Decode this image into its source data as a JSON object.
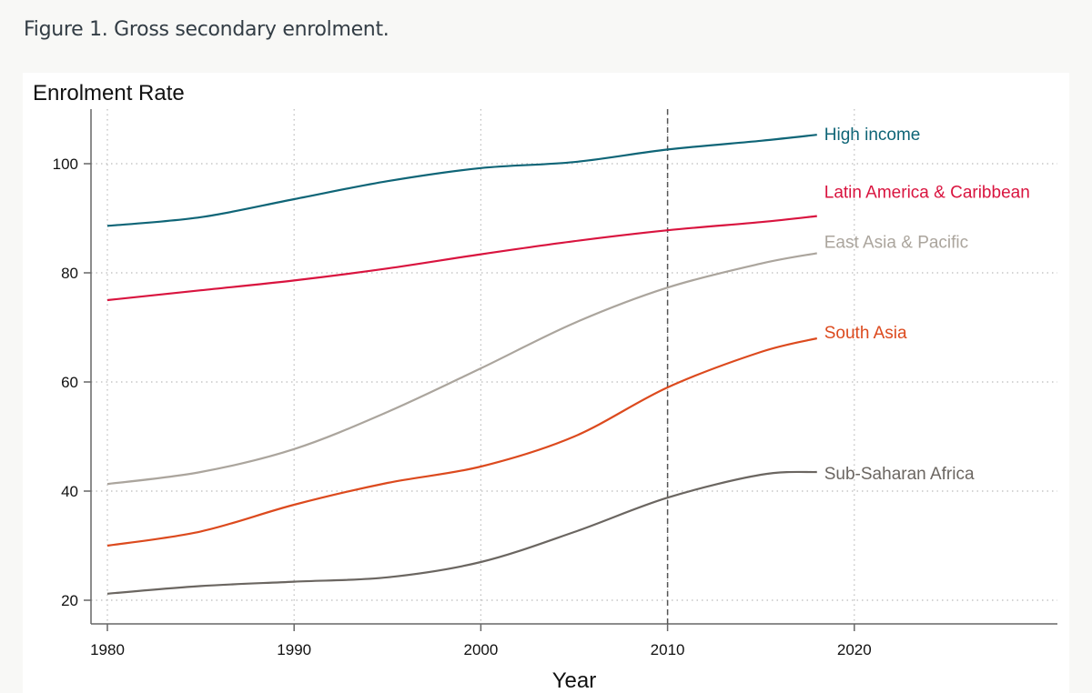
{
  "figure_title": "Figure 1. Gross secondary enrolment.",
  "chart_data": {
    "type": "line",
    "title": "",
    "ylabel": "Enrolment Rate",
    "xlabel": "Year",
    "xlim": [
      1979.2,
      2030.8
    ],
    "ylim": [
      15.8,
      110
    ],
    "xticks": [
      1980,
      1990,
      2000,
      2010,
      2020
    ],
    "yticks": [
      20,
      40,
      60,
      80,
      100
    ],
    "grid": true,
    "reference_line": {
      "x": 2010,
      "style": "dashed"
    },
    "x": [
      1980,
      1985,
      1990,
      1995,
      2000,
      2005,
      2010,
      2015,
      2018
    ],
    "series": [
      {
        "name": "High income",
        "color": "#0f6577",
        "values": [
          88.6,
          90.2,
          93.5,
          96.8,
          99.2,
          100.3,
          102.6,
          104.2,
          105.3
        ]
      },
      {
        "name": "Latin America & Caribbean",
        "color": "#d9143f",
        "values": [
          75.0,
          76.8,
          78.6,
          80.8,
          83.4,
          85.8,
          87.8,
          89.3,
          90.4
        ]
      },
      {
        "name": "East Asia & Pacific",
        "color": "#aba59d",
        "values": [
          41.3,
          43.5,
          47.7,
          54.5,
          62.5,
          70.8,
          77.3,
          81.7,
          83.6
        ]
      },
      {
        "name": "South Asia",
        "color": "#dc4a1e",
        "values": [
          30.0,
          32.6,
          37.5,
          41.5,
          44.5,
          50.0,
          59.0,
          65.5,
          68.0
        ]
      },
      {
        "name": "Sub-Saharan Africa",
        "color": "#6b6661",
        "values": [
          21.2,
          22.6,
          23.4,
          24.2,
          27.0,
          32.5,
          38.8,
          43.0,
          43.5
        ]
      }
    ]
  }
}
